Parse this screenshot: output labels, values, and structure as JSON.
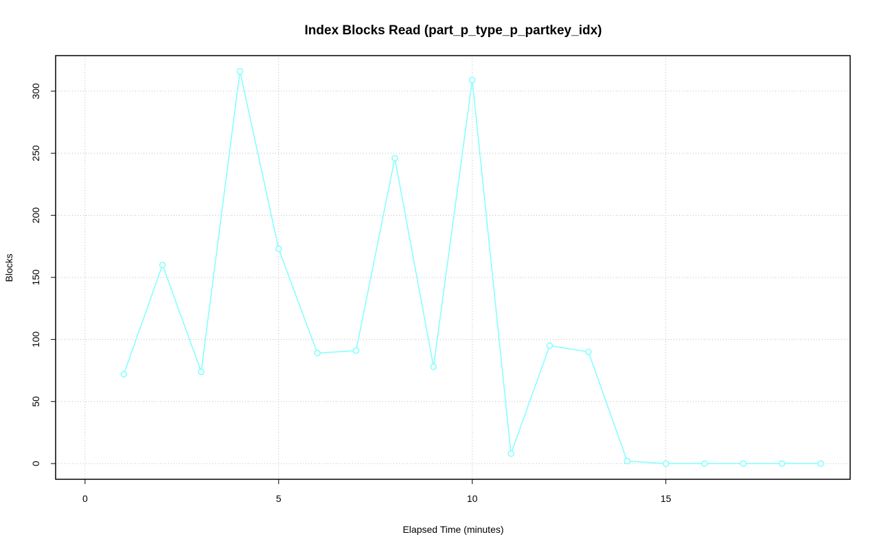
{
  "chart_data": {
    "type": "line",
    "title": "Index Blocks Read (part_p_type_p_partkey_idx)",
    "x_label": "Elapsed Time (minutes)",
    "y_label": "Blocks",
    "x": [
      1,
      2,
      3,
      4,
      5,
      6,
      7,
      8,
      9,
      10,
      11,
      12,
      13,
      14,
      15,
      16,
      17,
      18,
      19
    ],
    "series": [
      {
        "color": "#80ffff",
        "values": [
          72,
          160,
          74,
          316,
          173,
          89,
          91,
          246,
          78,
          309,
          8,
          95,
          90,
          2,
          0,
          0,
          0,
          0,
          0
        ]
      }
    ],
    "xlim": [
      -0.76,
      19.76
    ],
    "xticks": [
      0,
      5,
      10,
      15
    ],
    "ylim": [
      -12.64,
      328.64
    ],
    "yticks": [
      0,
      50,
      100,
      150,
      200,
      250,
      300
    ],
    "grid": true
  }
}
